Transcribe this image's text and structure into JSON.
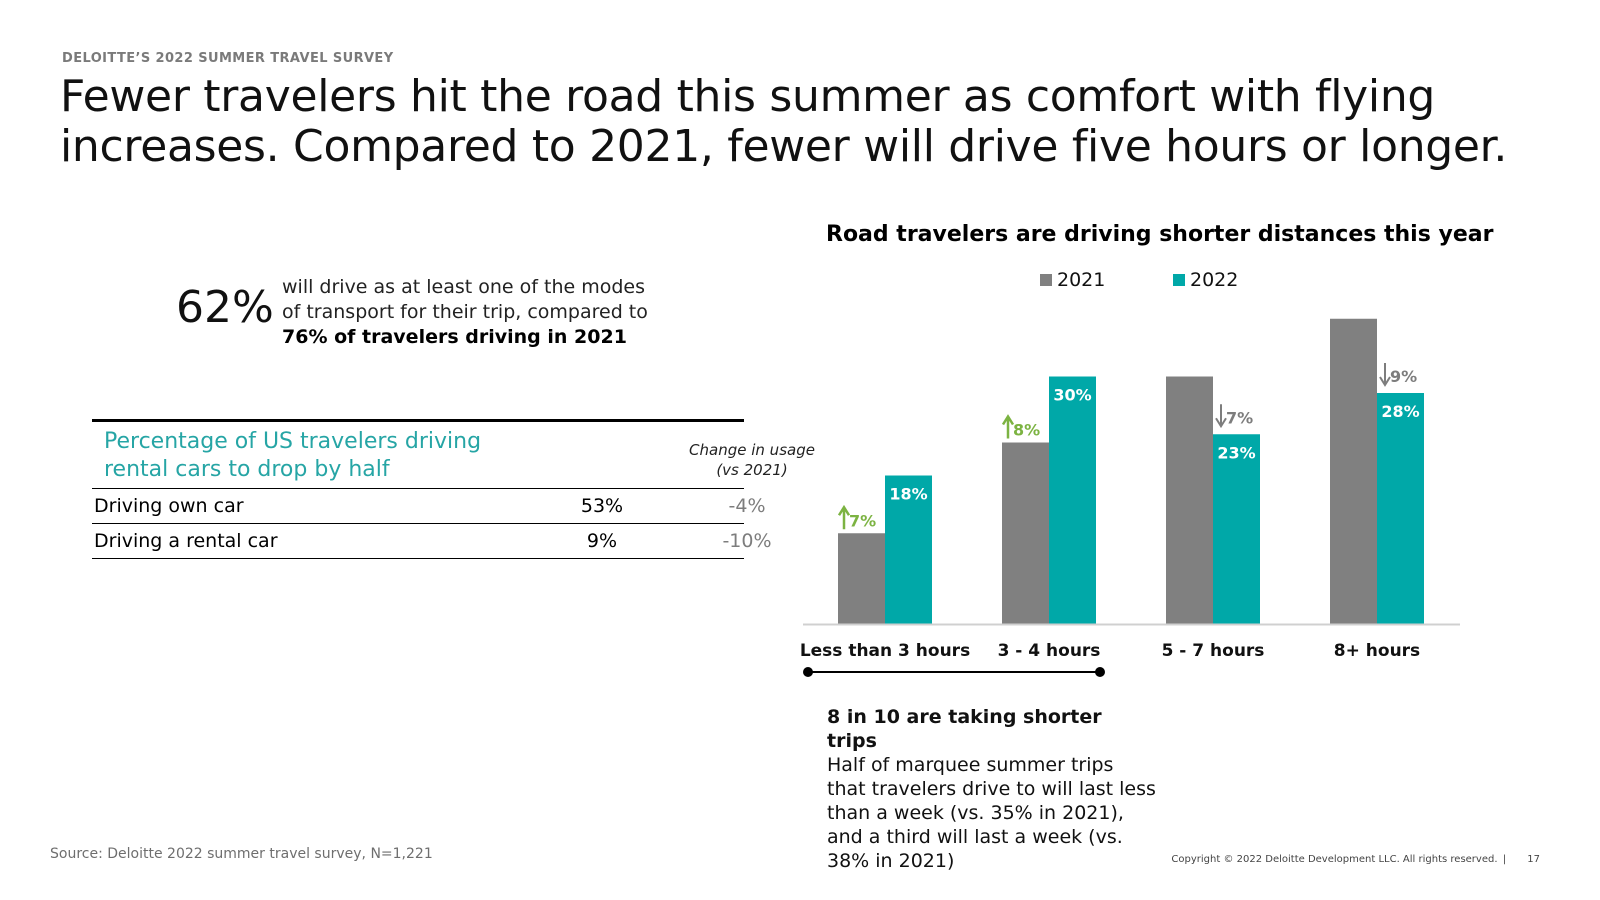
{
  "header": {
    "eyebrow": "DELOITTE’S 2022 SUMMER TRAVEL SURVEY",
    "headline": "Fewer travelers hit the road this summer as comfort with flying increases. Compared to 2021, fewer will drive five hours or longer."
  },
  "stat": {
    "value": "62%",
    "text": "will drive as at least one of the modes of transport for their trip, compared to",
    "bold": "76% of travelers driving in 2021"
  },
  "table": {
    "title": "Percentage of US travelers driving rental cars to drop by half",
    "change_header": "Change in usage (vs 2021)",
    "rows": [
      {
        "label": "Driving own car",
        "value": "53%",
        "change": "-4%"
      },
      {
        "label": "Driving a rental car",
        "value": "9%",
        "change": "-10%"
      }
    ]
  },
  "chart_data": {
    "type": "bar",
    "title": "Road travelers are driving shorter distances this year",
    "categories": [
      "Less than 3 hours",
      "3 - 4 hours",
      "5 - 7 hours",
      "8+ hours"
    ],
    "series": [
      {
        "name": "2021",
        "color": "#808080",
        "values": [
          11,
          22,
          30,
          37
        ],
        "labels": [
          "",
          "",
          "",
          ""
        ]
      },
      {
        "name": "2022",
        "color": "#00a8a8",
        "values": [
          18,
          30,
          23,
          28
        ],
        "labels": [
          "18%",
          "30%",
          "23%",
          "28%"
        ]
      }
    ],
    "changes": [
      {
        "label": "7%",
        "direction": "up",
        "color": "#7cb342"
      },
      {
        "label": "8%",
        "direction": "up",
        "color": "#7cb342"
      },
      {
        "label": "7%",
        "direction": "down",
        "color": "#7d7d7d"
      },
      {
        "label": "9%",
        "direction": "down",
        "color": "#7d7d7d"
      }
    ],
    "ylim": [
      0,
      40
    ],
    "legend": "top",
    "grid": false
  },
  "note": {
    "title": "8 in 10 are taking shorter trips",
    "body": "Half of marquee summer trips that travelers drive to will last less than a week (vs. 35% in 2021), and a third will last a week (vs. 38% in 2021)"
  },
  "footer": {
    "source": "Source: Deloitte 2022 summer travel survey, N=1,221",
    "copyright": "Copyright © 2022 Deloitte Development LLC. All rights reserved.",
    "separator": "|",
    "page": "17"
  }
}
